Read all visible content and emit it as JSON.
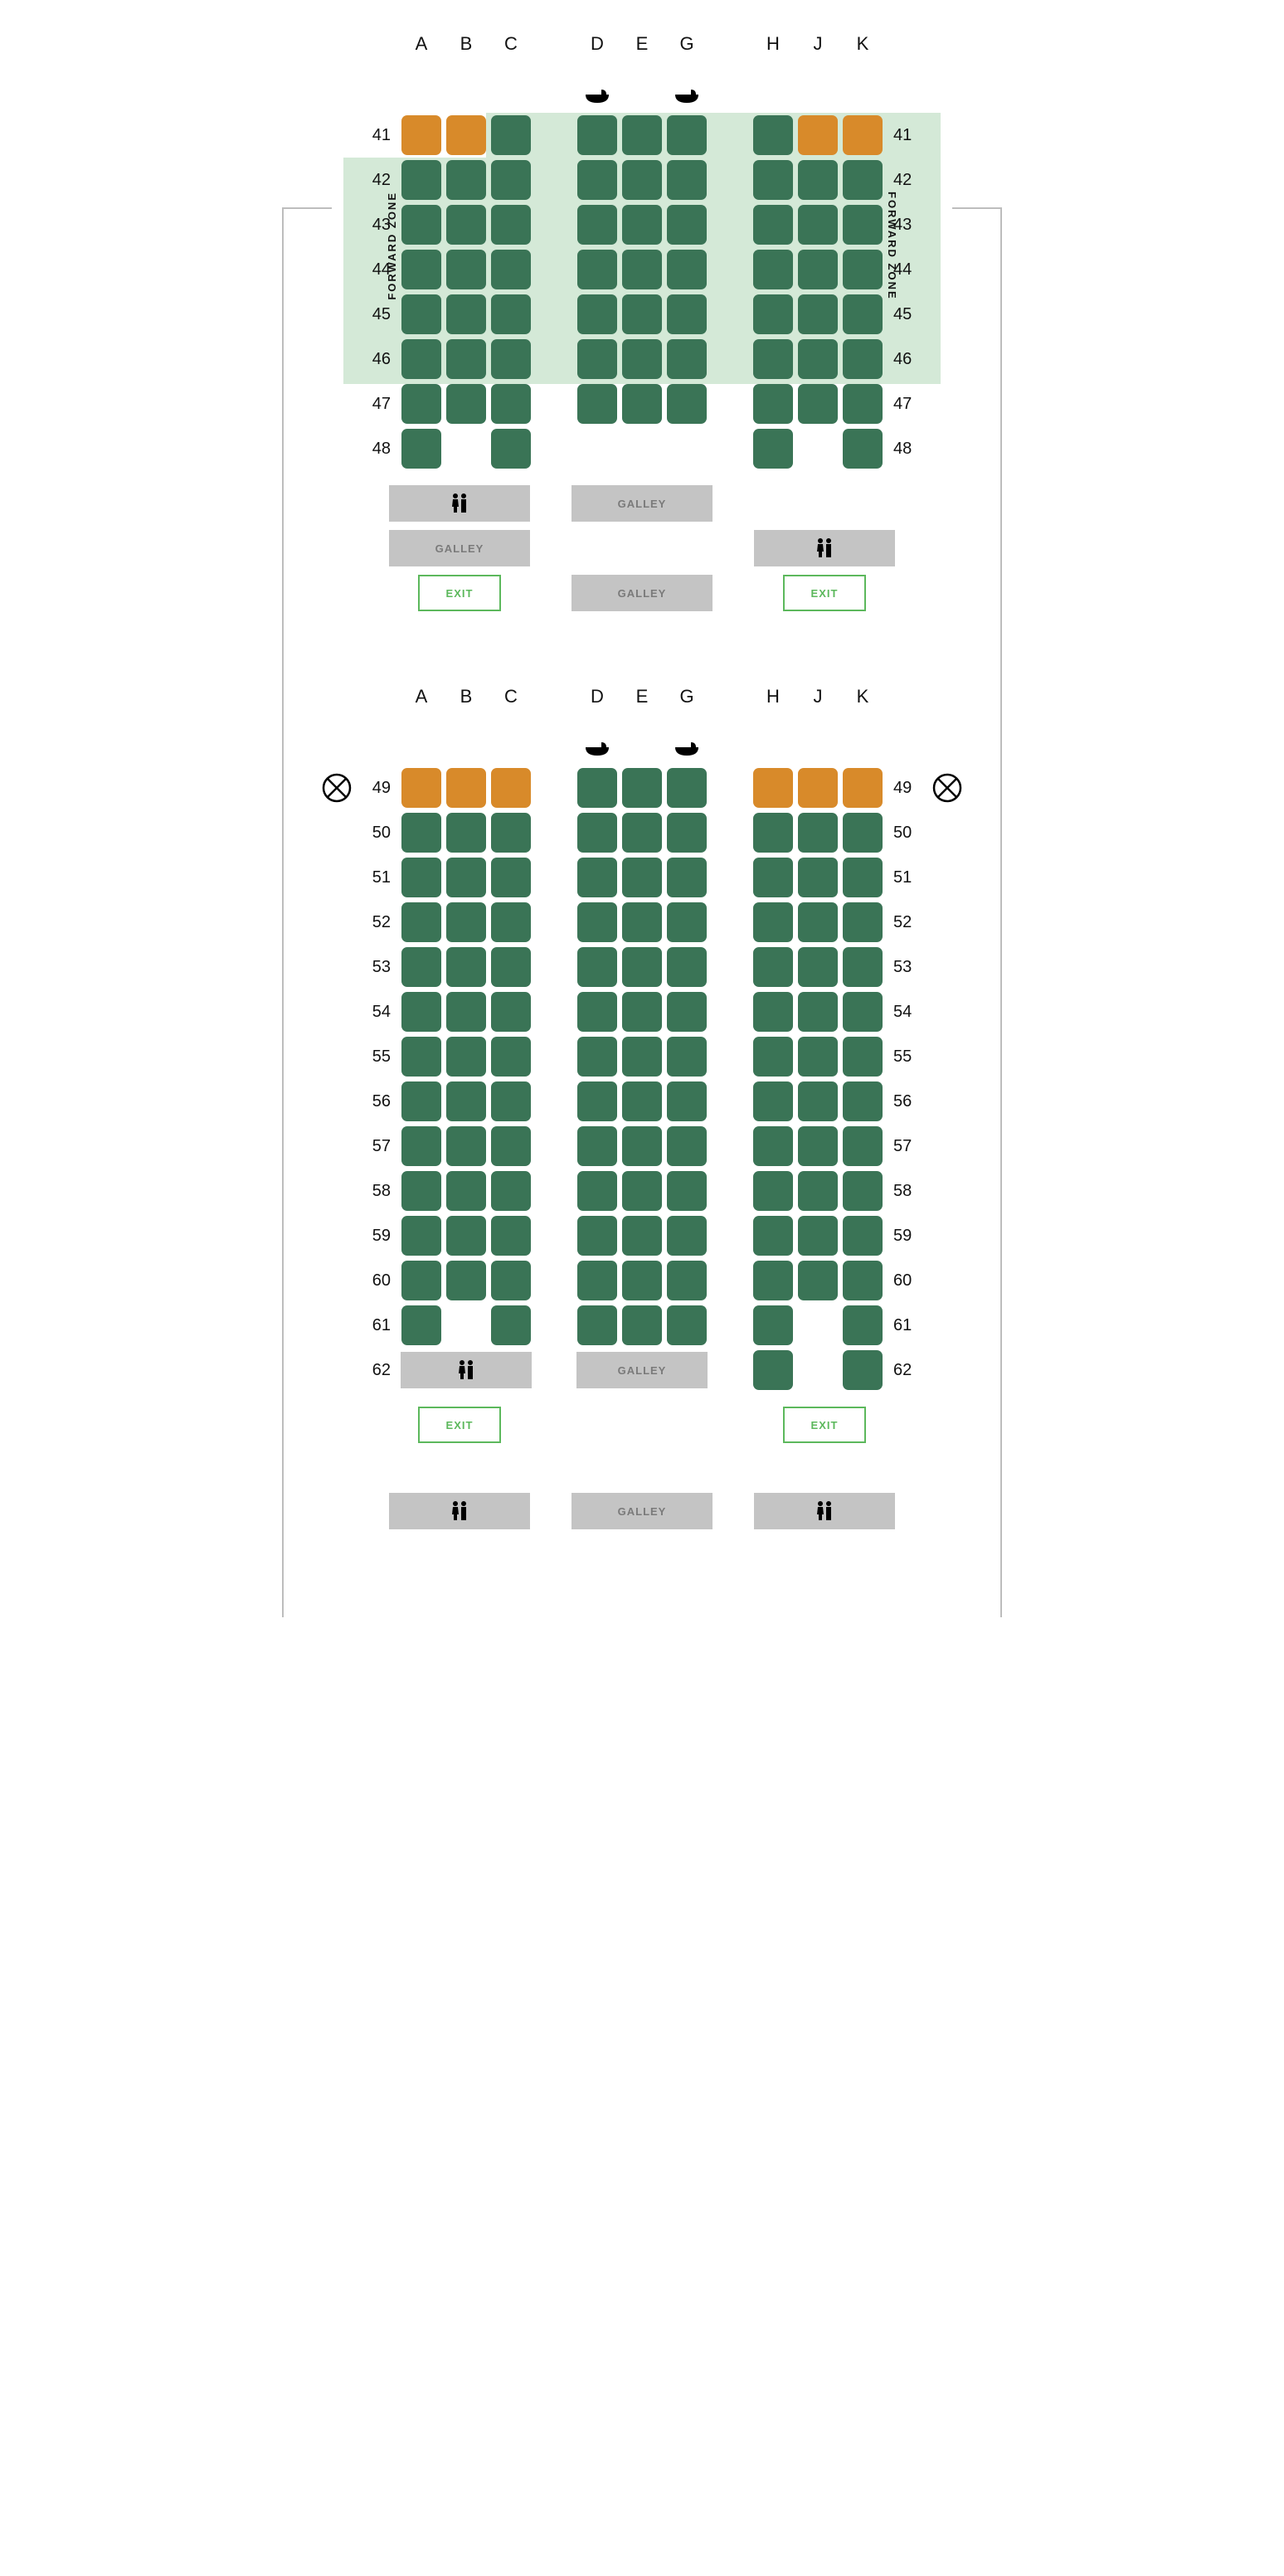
{
  "colors": {
    "seat_available": "#3a7456",
    "seat_extra": "#d88a2a",
    "forward_zone_bg": "#d4e9d7",
    "facility_bg": "#c4c4c4",
    "facility_text": "#7a7a7a",
    "exit_border": "#5cb85c",
    "exit_text": "#5cb85c",
    "wing_line": "#bdbdbd",
    "text": "#111111",
    "background": "#ffffff"
  },
  "layout": {
    "seat_size": 48,
    "seat_gap": 6,
    "seat_radius": 7,
    "aisle_width": 50,
    "row_label_width": 46
  },
  "columns": [
    "A",
    "B",
    "C",
    "D",
    "E",
    "G",
    "H",
    "J",
    "K"
  ],
  "column_groups": [
    [
      "A",
      "B",
      "C"
    ],
    [
      "D",
      "E",
      "G"
    ],
    [
      "H",
      "J",
      "K"
    ]
  ],
  "section1": {
    "bassinet_positions": [
      "D",
      "G"
    ],
    "forward_zone_label": "FORWARD ZONE",
    "forward_zone_rows": [
      41,
      42,
      43,
      44,
      45,
      46
    ],
    "rows": [
      {
        "num": 41,
        "seats": {
          "A": "extra",
          "B": "extra",
          "C": "available",
          "D": "available",
          "E": "available",
          "G": "available",
          "H": "available",
          "J": "extra",
          "K": "extra"
        }
      },
      {
        "num": 42,
        "seats": {
          "A": "available",
          "B": "available",
          "C": "available",
          "D": "available",
          "E": "available",
          "G": "available",
          "H": "available",
          "J": "available",
          "K": "available"
        }
      },
      {
        "num": 43,
        "seats": {
          "A": "available",
          "B": "available",
          "C": "available",
          "D": "available",
          "E": "available",
          "G": "available",
          "H": "available",
          "J": "available",
          "K": "available"
        }
      },
      {
        "num": 44,
        "seats": {
          "A": "available",
          "B": "available",
          "C": "available",
          "D": "available",
          "E": "available",
          "G": "available",
          "H": "available",
          "J": "available",
          "K": "available"
        }
      },
      {
        "num": 45,
        "seats": {
          "A": "available",
          "B": "available",
          "C": "available",
          "D": "available",
          "E": "available",
          "G": "available",
          "H": "available",
          "J": "available",
          "K": "available"
        }
      },
      {
        "num": 46,
        "seats": {
          "A": "available",
          "B": "available",
          "C": "available",
          "D": "available",
          "E": "available",
          "G": "available",
          "H": "available",
          "J": "available",
          "K": "available"
        }
      },
      {
        "num": 47,
        "seats": {
          "A": "available",
          "B": "available",
          "C": "available",
          "D": "available",
          "E": "available",
          "G": "available",
          "H": "available",
          "J": "available",
          "K": "available"
        }
      },
      {
        "num": 48,
        "seats": {
          "A": "available",
          "B": "none",
          "C": "available",
          "D": "none",
          "E": "none",
          "G": "none",
          "H": "available",
          "J": "none",
          "K": "available"
        }
      }
    ],
    "facilities": [
      [
        {
          "type": "lavatory"
        },
        {
          "type": "galley",
          "label": "GALLEY"
        },
        {
          "type": "empty"
        }
      ],
      [
        {
          "type": "galley",
          "label": "GALLEY"
        },
        {
          "type": "empty"
        },
        {
          "type": "lavatory"
        }
      ],
      [
        {
          "type": "exit",
          "label": "EXIT"
        },
        {
          "type": "galley",
          "label": "GALLEY"
        },
        {
          "type": "exit",
          "label": "EXIT"
        }
      ]
    ]
  },
  "section2": {
    "bassinet_positions": [
      "D",
      "G"
    ],
    "no_recline_row": 49,
    "rows": [
      {
        "num": 49,
        "seats": {
          "A": "extra",
          "B": "extra",
          "C": "extra",
          "D": "available",
          "E": "available",
          "G": "available",
          "H": "extra",
          "J": "extra",
          "K": "extra"
        }
      },
      {
        "num": 50,
        "seats": {
          "A": "available",
          "B": "available",
          "C": "available",
          "D": "available",
          "E": "available",
          "G": "available",
          "H": "available",
          "J": "available",
          "K": "available"
        }
      },
      {
        "num": 51,
        "seats": {
          "A": "available",
          "B": "available",
          "C": "available",
          "D": "available",
          "E": "available",
          "G": "available",
          "H": "available",
          "J": "available",
          "K": "available"
        }
      },
      {
        "num": 52,
        "seats": {
          "A": "available",
          "B": "available",
          "C": "available",
          "D": "available",
          "E": "available",
          "G": "available",
          "H": "available",
          "J": "available",
          "K": "available"
        }
      },
      {
        "num": 53,
        "seats": {
          "A": "available",
          "B": "available",
          "C": "available",
          "D": "available",
          "E": "available",
          "G": "available",
          "H": "available",
          "J": "available",
          "K": "available"
        }
      },
      {
        "num": 54,
        "seats": {
          "A": "available",
          "B": "available",
          "C": "available",
          "D": "available",
          "E": "available",
          "G": "available",
          "H": "available",
          "J": "available",
          "K": "available"
        }
      },
      {
        "num": 55,
        "seats": {
          "A": "available",
          "B": "available",
          "C": "available",
          "D": "available",
          "E": "available",
          "G": "available",
          "H": "available",
          "J": "available",
          "K": "available"
        }
      },
      {
        "num": 56,
        "seats": {
          "A": "available",
          "B": "available",
          "C": "available",
          "D": "available",
          "E": "available",
          "G": "available",
          "H": "available",
          "J": "available",
          "K": "available"
        }
      },
      {
        "num": 57,
        "seats": {
          "A": "available",
          "B": "available",
          "C": "available",
          "D": "available",
          "E": "available",
          "G": "available",
          "H": "available",
          "J": "available",
          "K": "available"
        }
      },
      {
        "num": 58,
        "seats": {
          "A": "available",
          "B": "available",
          "C": "available",
          "D": "available",
          "E": "available",
          "G": "available",
          "H": "available",
          "J": "available",
          "K": "available"
        }
      },
      {
        "num": 59,
        "seats": {
          "A": "available",
          "B": "available",
          "C": "available",
          "D": "available",
          "E": "available",
          "G": "available",
          "H": "available",
          "J": "available",
          "K": "available"
        }
      },
      {
        "num": 60,
        "seats": {
          "A": "available",
          "B": "available",
          "C": "available",
          "D": "available",
          "E": "available",
          "G": "available",
          "H": "available",
          "J": "available",
          "K": "available"
        }
      },
      {
        "num": 61,
        "seats": {
          "A": "available",
          "B": "none",
          "C": "available",
          "D": "available",
          "E": "available",
          "G": "available",
          "H": "available",
          "J": "none",
          "K": "available"
        }
      },
      {
        "num": 62,
        "seats": {
          "A": "lav",
          "B": "lav",
          "C": "lav",
          "D": "galley",
          "E": "galley",
          "G": "galley",
          "H": "available",
          "J": "none",
          "K": "available"
        }
      }
    ],
    "row62_facilities": {
      "left": {
        "type": "lavatory"
      },
      "center": {
        "type": "galley",
        "label": "GALLEY"
      }
    },
    "facilities_pre": [
      [
        {
          "type": "exit",
          "label": "EXIT"
        },
        {
          "type": "empty"
        },
        {
          "type": "exit",
          "label": "EXIT"
        }
      ]
    ],
    "facilities_post": [
      [
        {
          "type": "lavatory"
        },
        {
          "type": "galley",
          "label": "GALLEY"
        },
        {
          "type": "lavatory"
        }
      ]
    ]
  }
}
